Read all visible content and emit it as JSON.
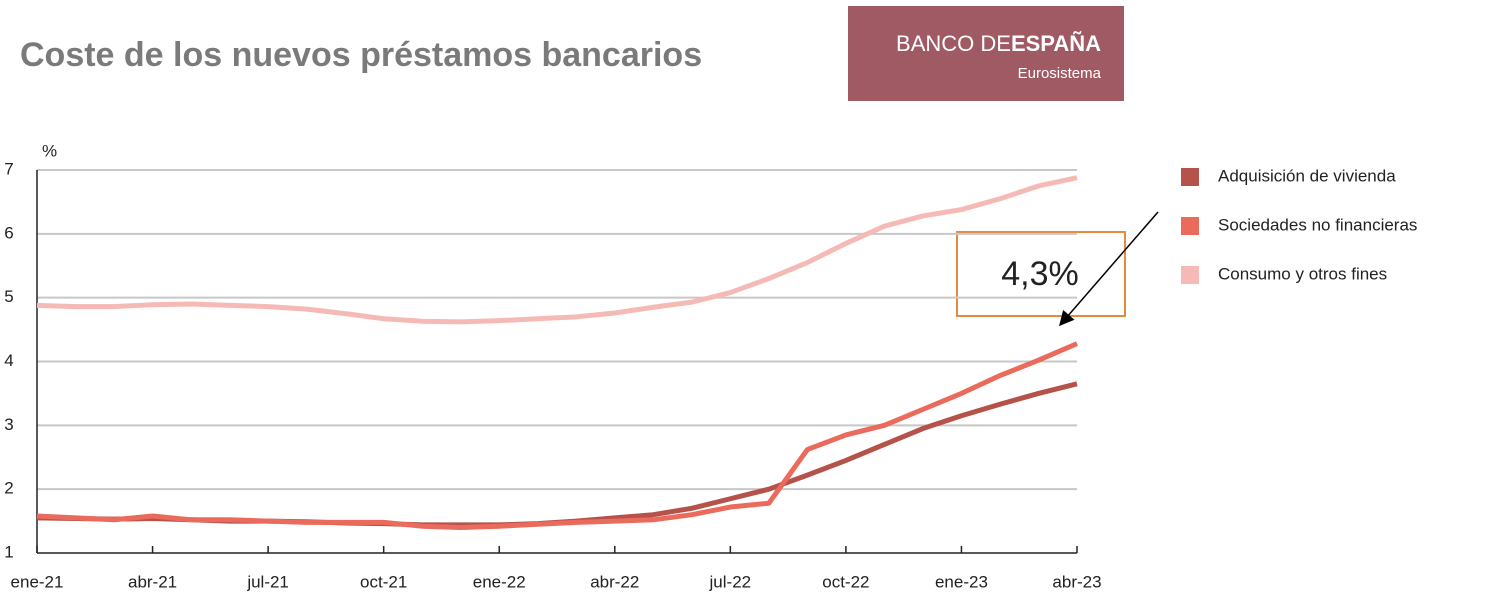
{
  "chart_data": {
    "type": "line",
    "title": "Coste de los nuevos préstamos bancarios",
    "y_label": "%",
    "categories": [
      "ene-21",
      null,
      null,
      "abr-21",
      null,
      null,
      "jul-21",
      null,
      null,
      "oct-21",
      null,
      null,
      "ene-22",
      null,
      null,
      "abr-22",
      null,
      null,
      "jul-22",
      null,
      null,
      "oct-22",
      null,
      null,
      "ene-23",
      null,
      null,
      "abr-23"
    ],
    "series": [
      {
        "name": "Adquisición de vivienda",
        "color": "#b5524a",
        "values": [
          1.55,
          1.54,
          1.53,
          1.54,
          1.52,
          1.5,
          1.5,
          1.49,
          1.47,
          1.46,
          1.44,
          1.44,
          1.44,
          1.46,
          1.5,
          1.55,
          1.6,
          1.7,
          1.85,
          2.0,
          2.22,
          2.45,
          2.7,
          2.95,
          3.15,
          3.33,
          3.5,
          3.65
        ]
      },
      {
        "name": "Sociedades no financieras",
        "color": "#ea6a5c",
        "values": [
          1.58,
          1.55,
          1.52,
          1.58,
          1.52,
          1.52,
          1.5,
          1.48,
          1.48,
          1.48,
          1.42,
          1.4,
          1.42,
          1.45,
          1.48,
          1.5,
          1.52,
          1.6,
          1.72,
          1.78,
          2.62,
          2.85,
          3.0,
          3.25,
          3.5,
          3.78,
          4.02,
          4.28
        ]
      },
      {
        "name": "Consumo y otros fines",
        "color": "#f5bab5",
        "values": [
          4.88,
          4.86,
          4.86,
          4.89,
          4.9,
          4.88,
          4.86,
          4.82,
          4.75,
          4.67,
          4.63,
          4.62,
          4.64,
          4.67,
          4.7,
          4.76,
          4.85,
          4.93,
          5.08,
          5.3,
          5.55,
          5.85,
          6.12,
          6.28,
          6.38,
          6.55,
          6.75,
          6.88
        ]
      }
    ],
    "ylim": [
      1,
      7
    ],
    "yticks": [
      1,
      2,
      3,
      4,
      5,
      6,
      7
    ],
    "grid": true,
    "annotation": "4,3%"
  },
  "logo": {
    "part1": "BANCO DE",
    "part2": "ESPAÑA",
    "sub": "Eurosistema"
  }
}
